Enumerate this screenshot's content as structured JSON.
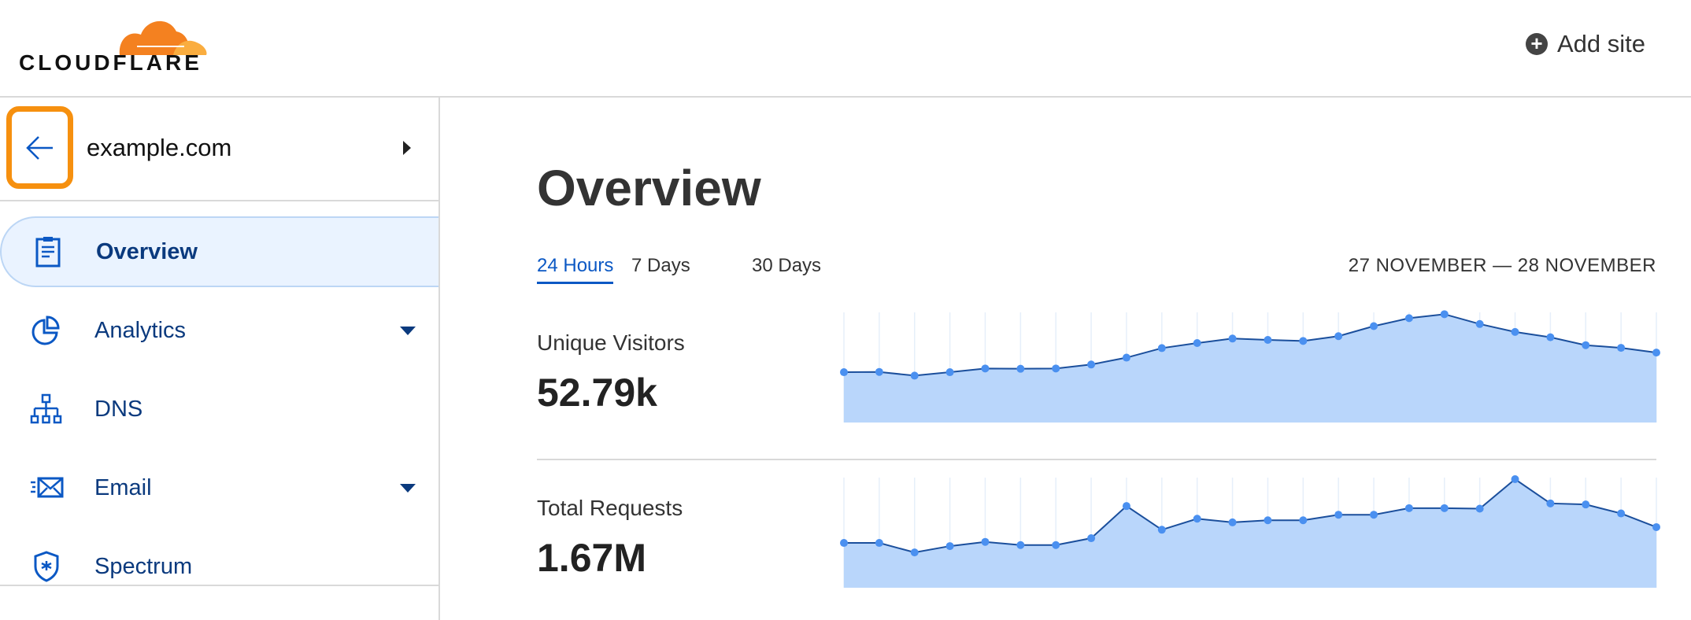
{
  "header": {
    "logo_text": "CLOUDFLARE",
    "add_site_label": "Add site",
    "add_site_icon": "plus-circle-icon"
  },
  "sidebar": {
    "zone_name": "example.com",
    "back_icon": "arrow-left-icon",
    "highlight_color": "#f6900f",
    "items": [
      {
        "label": "Overview",
        "icon": "clipboard-icon",
        "active": true,
        "expandable": false
      },
      {
        "label": "Analytics",
        "icon": "pie-chart-icon",
        "active": false,
        "expandable": true
      },
      {
        "label": "DNS",
        "icon": "network-icon",
        "active": false,
        "expandable": false
      },
      {
        "label": "Email",
        "icon": "envelope-icon",
        "active": false,
        "expandable": true
      },
      {
        "label": "Spectrum",
        "icon": "shield-icon",
        "active": false,
        "expandable": false
      }
    ]
  },
  "main": {
    "title": "Overview",
    "tabs": [
      {
        "label": "24 Hours",
        "active": true
      },
      {
        "label": "7 Days",
        "active": false
      },
      {
        "label": "30 Days",
        "active": false
      }
    ],
    "date_range": "27 NOVEMBER — 28 NOVEMBER",
    "metrics": [
      {
        "label": "Unique Visitors",
        "value": "52.79k"
      },
      {
        "label": "Total Requests",
        "value": "1.67M"
      }
    ]
  },
  "chart_data": [
    {
      "type": "area",
      "title": "Unique Visitors",
      "ylim": [
        0,
        410
      ],
      "grid": true,
      "colors": {
        "fill": "#b9d6fb",
        "line": "#1b4f9c",
        "point": "#4a90f0"
      },
      "values": [
        190,
        191,
        177,
        190,
        204,
        203,
        204,
        219,
        245,
        281,
        300,
        317,
        312,
        308,
        326,
        364,
        394,
        409,
        372,
        342,
        322,
        292,
        282,
        264
      ]
    },
    {
      "type": "area",
      "title": "Total Requests",
      "ylim": [
        0,
        412
      ],
      "grid": true,
      "colors": {
        "fill": "#b9d6fb",
        "line": "#1b4f9c",
        "point": "#4a90f0"
      },
      "values": [
        170,
        170,
        134,
        158,
        174,
        162,
        162,
        188,
        310,
        220,
        262,
        248,
        256,
        256,
        277,
        277,
        302,
        302,
        300,
        412,
        320,
        316,
        282,
        230
      ]
    }
  ]
}
